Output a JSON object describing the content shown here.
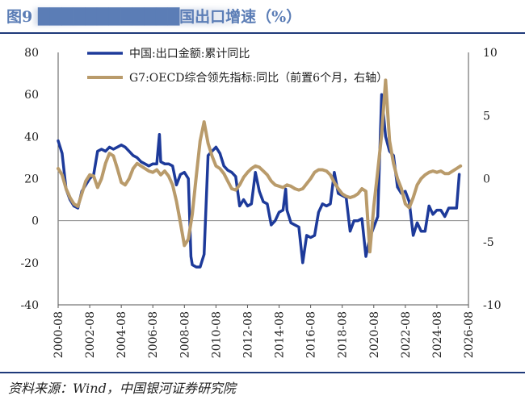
{
  "header": {
    "title": "图9 ████████████国出口增速（%）"
  },
  "footer": {
    "source": "资料来源：Wind，中国银河证券研究院"
  },
  "chart_data": {
    "type": "line",
    "title": "",
    "xlabel": "",
    "ylabel": "",
    "left_axis": {
      "ylim": [
        -40,
        80
      ],
      "ticks": [
        "80",
        "60",
        "40",
        "20",
        "0",
        "-20",
        "-40"
      ]
    },
    "right_axis": {
      "ylim": [
        -10,
        10
      ],
      "ticks": [
        "10",
        "5",
        "0",
        "-5",
        "-10"
      ]
    },
    "x_tick_labels": [
      "2000-08",
      "2002-08",
      "2004-08",
      "2006-08",
      "2008-08",
      "2010-08",
      "2012-08",
      "2014-08",
      "2016-08",
      "2018-08",
      "2020-08",
      "2022-08",
      "2024-08",
      "2026-08"
    ],
    "grid": false,
    "legend_position": "top-center",
    "series": [
      {
        "name": "中国:出口金额:累计同比",
        "axis": "left",
        "color": "#1d3a9a",
        "points": [
          [
            "2000-08",
            38
          ],
          [
            "2000-11",
            32
          ],
          [
            "2001-02",
            15
          ],
          [
            "2001-05",
            10
          ],
          [
            "2001-08",
            7
          ],
          [
            "2001-11",
            6
          ],
          [
            "2002-02",
            14
          ],
          [
            "2002-05",
            17
          ],
          [
            "2002-08",
            20
          ],
          [
            "2002-11",
            22
          ],
          [
            "2003-02",
            33
          ],
          [
            "2003-05",
            34
          ],
          [
            "2003-08",
            33
          ],
          [
            "2003-11",
            35
          ],
          [
            "2004-02",
            34
          ],
          [
            "2004-05",
            35
          ],
          [
            "2004-08",
            36
          ],
          [
            "2004-11",
            35
          ],
          [
            "2005-02",
            33
          ],
          [
            "2005-05",
            31
          ],
          [
            "2005-08",
            30
          ],
          [
            "2005-11",
            28
          ],
          [
            "2006-02",
            27
          ],
          [
            "2006-05",
            26
          ],
          [
            "2006-08",
            27
          ],
          [
            "2006-11",
            27
          ],
          [
            "2007-01",
            41
          ],
          [
            "2007-02",
            28
          ],
          [
            "2007-05",
            27
          ],
          [
            "2007-08",
            27
          ],
          [
            "2007-11",
            26
          ],
          [
            "2008-02",
            17
          ],
          [
            "2008-05",
            22
          ],
          [
            "2008-08",
            23
          ],
          [
            "2008-11",
            20
          ],
          [
            "2009-01",
            -17
          ],
          [
            "2009-02",
            -21
          ],
          [
            "2009-05",
            -22
          ],
          [
            "2009-08",
            -22
          ],
          [
            "2009-11",
            -16
          ],
          [
            "2010-02",
            31
          ],
          [
            "2010-05",
            33
          ],
          [
            "2010-08",
            35
          ],
          [
            "2010-11",
            32
          ],
          [
            "2011-02",
            26
          ],
          [
            "2011-05",
            24
          ],
          [
            "2011-08",
            23
          ],
          [
            "2011-11",
            21
          ],
          [
            "2012-02",
            7
          ],
          [
            "2012-05",
            10
          ],
          [
            "2012-08",
            7
          ],
          [
            "2012-11",
            8
          ],
          [
            "2013-02",
            23
          ],
          [
            "2013-05",
            14
          ],
          [
            "2013-08",
            9
          ],
          [
            "2013-11",
            8
          ],
          [
            "2014-02",
            -2
          ],
          [
            "2014-05",
            0
          ],
          [
            "2014-08",
            4
          ],
          [
            "2014-11",
            5
          ],
          [
            "2015-01",
            15
          ],
          [
            "2015-02",
            5
          ],
          [
            "2015-05",
            -1
          ],
          [
            "2015-08",
            -2
          ],
          [
            "2015-11",
            -3
          ],
          [
            "2016-02",
            -20
          ],
          [
            "2016-05",
            -7
          ],
          [
            "2016-08",
            -8
          ],
          [
            "2016-11",
            -7
          ],
          [
            "2017-02",
            4
          ],
          [
            "2017-05",
            8
          ],
          [
            "2017-08",
            7
          ],
          [
            "2017-11",
            8
          ],
          [
            "2018-02",
            23
          ],
          [
            "2018-05",
            13
          ],
          [
            "2018-08",
            12
          ],
          [
            "2018-11",
            11
          ],
          [
            "2019-02",
            -5
          ],
          [
            "2019-05",
            0
          ],
          [
            "2019-08",
            0
          ],
          [
            "2019-11",
            1
          ],
          [
            "2020-02",
            -17
          ],
          [
            "2020-05",
            -8
          ],
          [
            "2020-08",
            -3
          ],
          [
            "2020-11",
            2
          ],
          [
            "2021-02",
            60
          ],
          [
            "2021-05",
            40
          ],
          [
            "2021-08",
            33
          ],
          [
            "2021-11",
            31
          ],
          [
            "2022-02",
            16
          ],
          [
            "2022-05",
            13
          ],
          [
            "2022-08",
            14
          ],
          [
            "2022-11",
            9
          ],
          [
            "2023-02",
            -7
          ],
          [
            "2023-05",
            -1
          ],
          [
            "2023-08",
            -5
          ],
          [
            "2023-11",
            -5
          ],
          [
            "2024-02",
            7
          ],
          [
            "2024-05",
            3
          ],
          [
            "2024-08",
            5
          ],
          [
            "2024-11",
            5
          ],
          [
            "2025-02",
            2
          ],
          [
            "2025-05",
            6
          ],
          [
            "2025-08",
            6
          ],
          [
            "2025-11",
            6
          ],
          [
            "2026-01",
            22
          ]
        ]
      },
      {
        "name": "G7:OECD综合领先指标:同比（前置6个月，右轴）",
        "axis": "right",
        "color": "#b99b6b",
        "points": [
          [
            "2000-08",
            0.8
          ],
          [
            "2000-11",
            0.3
          ],
          [
            "2001-02",
            -0.8
          ],
          [
            "2001-05",
            -1.5
          ],
          [
            "2001-08",
            -2.0
          ],
          [
            "2001-11",
            -2.2
          ],
          [
            "2002-02",
            -1.2
          ],
          [
            "2002-05",
            -0.2
          ],
          [
            "2002-08",
            0.3
          ],
          [
            "2002-11",
            0.2
          ],
          [
            "2003-02",
            -0.7
          ],
          [
            "2003-05",
            0.0
          ],
          [
            "2003-08",
            1.2
          ],
          [
            "2003-11",
            2.0
          ],
          [
            "2004-02",
            1.8
          ],
          [
            "2004-05",
            0.8
          ],
          [
            "2004-08",
            -0.3
          ],
          [
            "2004-11",
            -0.5
          ],
          [
            "2005-02",
            0.0
          ],
          [
            "2005-05",
            0.8
          ],
          [
            "2005-08",
            1.2
          ],
          [
            "2005-11",
            1.0
          ],
          [
            "2006-02",
            0.8
          ],
          [
            "2006-05",
            0.6
          ],
          [
            "2006-08",
            0.5
          ],
          [
            "2006-11",
            0.7
          ],
          [
            "2007-02",
            0.3
          ],
          [
            "2007-05",
            0.6
          ],
          [
            "2007-08",
            0.2
          ],
          [
            "2007-11",
            -0.5
          ],
          [
            "2008-02",
            -1.8
          ],
          [
            "2008-05",
            -3.5
          ],
          [
            "2008-08",
            -5.3
          ],
          [
            "2008-11",
            -4.8
          ],
          [
            "2009-02",
            -2.8
          ],
          [
            "2009-05",
            0.2
          ],
          [
            "2009-08",
            3.0
          ],
          [
            "2009-11",
            4.5
          ],
          [
            "2010-02",
            2.8
          ],
          [
            "2010-05",
            1.8
          ],
          [
            "2010-08",
            1.0
          ],
          [
            "2010-11",
            0.8
          ],
          [
            "2011-02",
            0.4
          ],
          [
            "2011-05",
            -0.2
          ],
          [
            "2011-08",
            -0.8
          ],
          [
            "2011-11",
            -0.9
          ],
          [
            "2012-02",
            -0.5
          ],
          [
            "2012-05",
            0.1
          ],
          [
            "2012-08",
            0.5
          ],
          [
            "2012-11",
            0.8
          ],
          [
            "2013-02",
            1.0
          ],
          [
            "2013-05",
            0.9
          ],
          [
            "2013-08",
            0.6
          ],
          [
            "2013-11",
            0.3
          ],
          [
            "2014-02",
            -0.2
          ],
          [
            "2014-05",
            -0.5
          ],
          [
            "2014-08",
            -0.6
          ],
          [
            "2014-11",
            -0.7
          ],
          [
            "2015-02",
            -0.5
          ],
          [
            "2015-05",
            -0.6
          ],
          [
            "2015-08",
            -0.8
          ],
          [
            "2015-11",
            -0.9
          ],
          [
            "2016-02",
            -0.8
          ],
          [
            "2016-05",
            -0.4
          ],
          [
            "2016-08",
            0.0
          ],
          [
            "2016-11",
            0.5
          ],
          [
            "2017-02",
            0.7
          ],
          [
            "2017-05",
            0.7
          ],
          [
            "2017-08",
            0.6
          ],
          [
            "2017-11",
            0.3
          ],
          [
            "2018-02",
            -0.3
          ],
          [
            "2018-05",
            -0.8
          ],
          [
            "2018-08",
            -1.2
          ],
          [
            "2018-11",
            -1.4
          ],
          [
            "2019-02",
            -1.5
          ],
          [
            "2019-05",
            -1.4
          ],
          [
            "2019-08",
            -1.2
          ],
          [
            "2019-11",
            -0.8
          ],
          [
            "2020-02",
            -1.0
          ],
          [
            "2020-05",
            -5.8
          ],
          [
            "2020-08",
            -2.2
          ],
          [
            "2020-11",
            0.6
          ],
          [
            "2021-02",
            3.5
          ],
          [
            "2021-05",
            7.8
          ],
          [
            "2021-08",
            3.0
          ],
          [
            "2021-11",
            1.2
          ],
          [
            "2022-02",
            0.0
          ],
          [
            "2022-05",
            -0.8
          ],
          [
            "2022-08",
            -2.0
          ],
          [
            "2022-11",
            -2.3
          ],
          [
            "2023-02",
            -1.5
          ],
          [
            "2023-05",
            -0.5
          ],
          [
            "2023-08",
            0.0
          ],
          [
            "2023-11",
            0.3
          ],
          [
            "2024-02",
            0.5
          ],
          [
            "2024-05",
            0.6
          ],
          [
            "2024-08",
            0.5
          ],
          [
            "2024-11",
            0.6
          ],
          [
            "2025-02",
            0.4
          ],
          [
            "2025-05",
            0.4
          ],
          [
            "2025-08",
            0.6
          ],
          [
            "2025-11",
            0.8
          ],
          [
            "2026-02",
            1.0
          ]
        ]
      }
    ]
  }
}
